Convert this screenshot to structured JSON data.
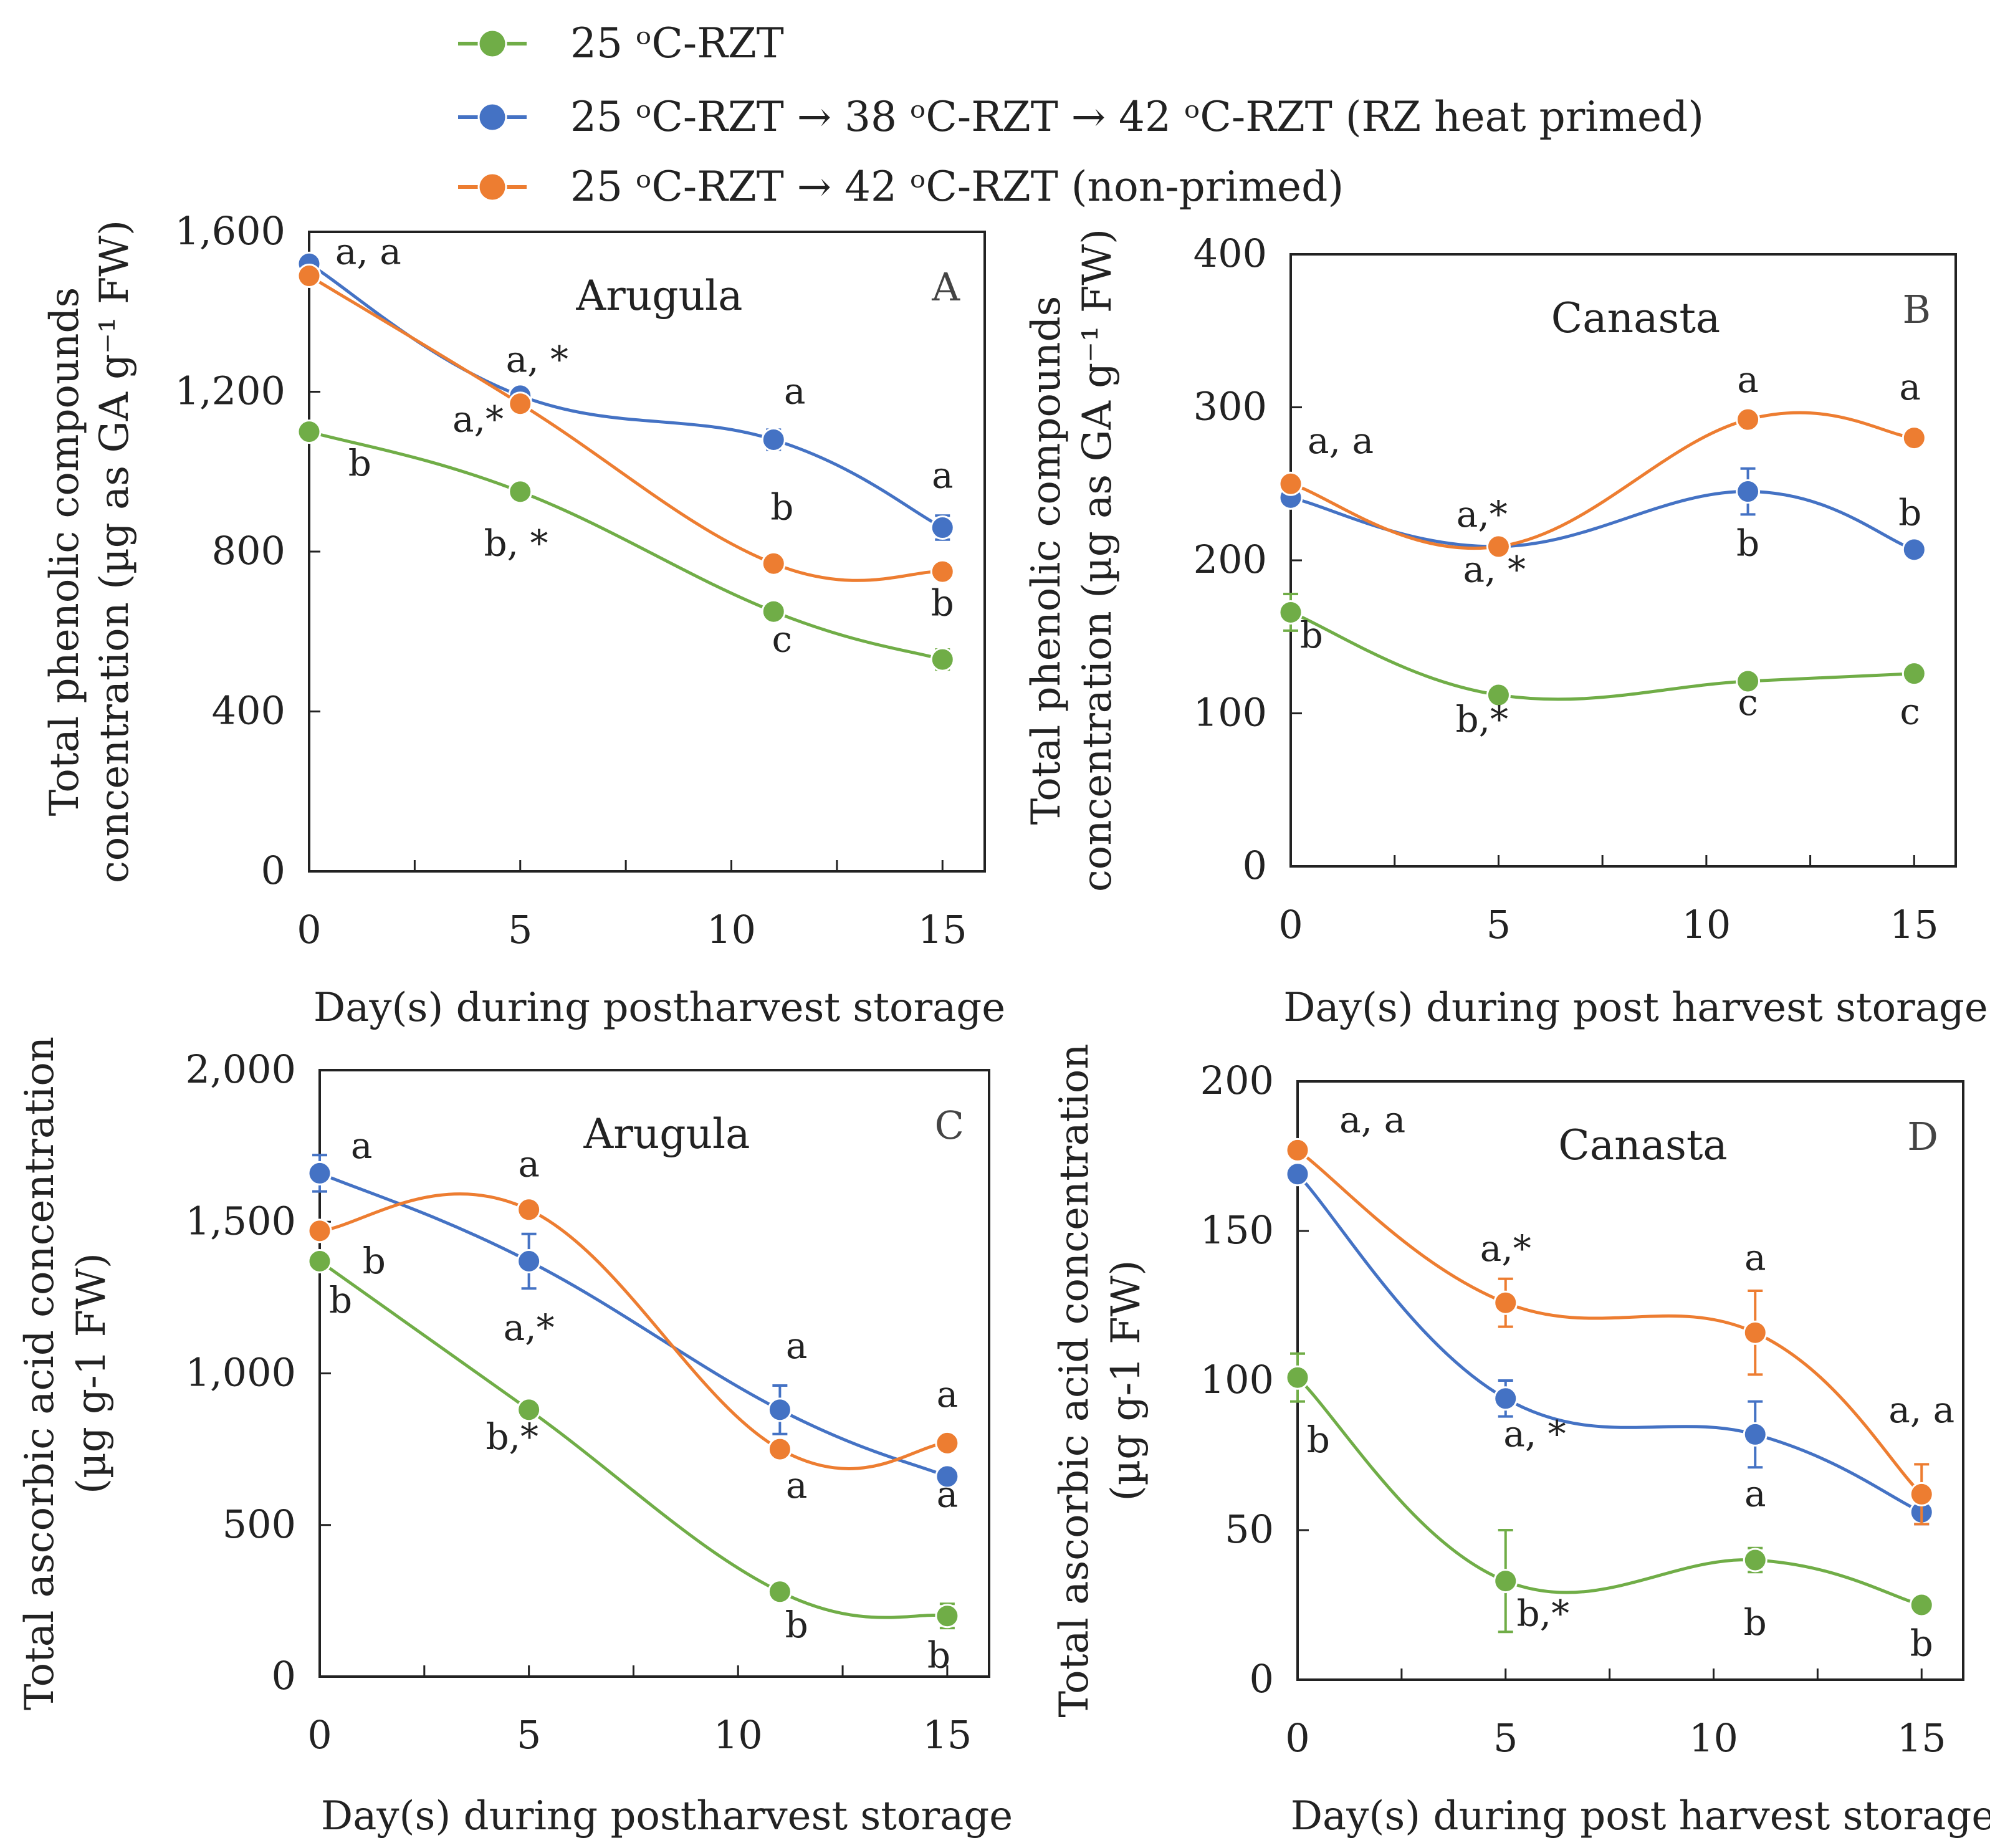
{
  "legend": {
    "entries": [
      {
        "label": "25 ᵒC-RZT",
        "color": "#70ad47"
      },
      {
        "label": "25 ᵒC-RZT → 38 ᵒC-RZT → 42 ᵒC-RZT (RZ heat primed)",
        "color": "#4472c4"
      },
      {
        "label": "25 ᵒC-RZT → 42 ᵒC-RZT (non-primed)",
        "color": "#ed7d31"
      }
    ]
  },
  "chart_data": [
    {
      "id": "A",
      "type": "line",
      "letter": "A",
      "title": "Arugula",
      "xlabel": "Day(s) during postharvest storage",
      "ylabel": [
        "Total phenolic  compounds",
        "concentration (µg as GA g⁻¹ FW)"
      ],
      "x": [
        0,
        5,
        11,
        15
      ],
      "xticks": [
        0,
        5,
        10,
        15
      ],
      "xlim": [
        0,
        16
      ],
      "ylim": [
        0,
        1600
      ],
      "yticks": [
        0,
        400,
        800,
        1200,
        1600
      ],
      "ytick_labels": [
        "0",
        "400",
        "800",
        "1,200",
        "1,600"
      ],
      "series": [
        {
          "name": "25 ᵒC-RZT",
          "color": "#70ad47",
          "values": [
            1100,
            950,
            650,
            530
          ],
          "errors": [
            0,
            0,
            0,
            25
          ]
        },
        {
          "name": "RZ heat primed",
          "color": "#4472c4",
          "values": [
            1520,
            1190,
            1080,
            860
          ],
          "errors": [
            0,
            0,
            25,
            30
          ]
        },
        {
          "name": "non-primed",
          "color": "#ed7d31",
          "values": [
            1490,
            1170,
            770,
            750
          ],
          "errors": [
            0,
            20,
            0,
            0
          ]
        }
      ],
      "annotations": [
        {
          "text": "a, a",
          "x": 1.4,
          "y": 1520
        },
        {
          "text": "b",
          "x": 1.2,
          "y": 990
        },
        {
          "text": "a, *",
          "x": 5.4,
          "y": 1250
        },
        {
          "text": "a,*",
          "x": 4.0,
          "y": 1100
        },
        {
          "text": "b, *",
          "x": 4.9,
          "y": 790
        },
        {
          "text": "a",
          "x": 11.5,
          "y": 1170
        },
        {
          "text": "b",
          "x": 11.2,
          "y": 880
        },
        {
          "text": "c",
          "x": 11.2,
          "y": 550
        },
        {
          "text": "a",
          "x": 15.0,
          "y": 960
        },
        {
          "text": "b",
          "x": 15.0,
          "y": 640
        }
      ]
    },
    {
      "id": "B",
      "type": "line",
      "letter": "B",
      "title": "Canasta",
      "xlabel": "Day(s) during post harvest storage",
      "ylabel": [
        "Total phenolic  compounds",
        "concentration (µg as GA g⁻¹ FW)"
      ],
      "x": [
        0,
        5,
        11,
        15
      ],
      "xticks": [
        0,
        5,
        10,
        15
      ],
      "xlim": [
        0,
        16
      ],
      "ylim": [
        0,
        400
      ],
      "yticks": [
        0,
        100,
        200,
        300,
        400
      ],
      "ytick_labels": [
        "0",
        "100",
        "200",
        "300",
        "400"
      ],
      "series": [
        {
          "name": "25 ᵒC-RZT",
          "color": "#70ad47",
          "values": [
            166,
            112,
            121,
            126
          ],
          "errors": [
            12,
            0,
            0,
            5
          ]
        },
        {
          "name": "RZ heat primed",
          "color": "#4472c4",
          "values": [
            241,
            209,
            245,
            207
          ],
          "errors": [
            0,
            0,
            15,
            0
          ]
        },
        {
          "name": "non-primed",
          "color": "#ed7d31",
          "values": [
            250,
            209,
            292,
            280
          ],
          "errors": [
            0,
            0,
            0,
            0
          ]
        }
      ],
      "annotations": [
        {
          "text": "a, a",
          "x": 1.2,
          "y": 270
        },
        {
          "text": "b",
          "x": 0.5,
          "y": 143
        },
        {
          "text": "a,*",
          "x": 4.6,
          "y": 222
        },
        {
          "text": "a, *",
          "x": 4.9,
          "y": 186
        },
        {
          "text": "b,*",
          "x": 4.6,
          "y": 88
        },
        {
          "text": "a",
          "x": 11.0,
          "y": 310
        },
        {
          "text": "b",
          "x": 11.0,
          "y": 203
        },
        {
          "text": "c",
          "x": 11.0,
          "y": 99
        },
        {
          "text": "a",
          "x": 14.9,
          "y": 305
        },
        {
          "text": "b",
          "x": 14.9,
          "y": 223
        },
        {
          "text": "c",
          "x": 14.9,
          "y": 93
        }
      ]
    },
    {
      "id": "C",
      "type": "line",
      "letter": "C",
      "title": "Arugula",
      "xlabel": "Day(s) during postharvest storage",
      "ylabel": [
        "Total ascorbic acid concentration",
        "(µg g-1 FW)"
      ],
      "x": [
        0,
        5,
        11,
        15
      ],
      "xticks": [
        0,
        5,
        10,
        15
      ],
      "xlim": [
        0,
        16
      ],
      "ylim": [
        0,
        2000
      ],
      "yticks": [
        0,
        500,
        1000,
        1500,
        2000
      ],
      "ytick_labels": [
        "0",
        "500",
        "1,000",
        "1,500",
        "2,000"
      ],
      "series": [
        {
          "name": "25 ᵒC-RZT",
          "color": "#70ad47",
          "values": [
            1370,
            880,
            280,
            200
          ],
          "errors": [
            0,
            0,
            0,
            40
          ]
        },
        {
          "name": "RZ heat primed",
          "color": "#4472c4",
          "values": [
            1660,
            1370,
            880,
            660
          ],
          "errors": [
            60,
            90,
            80,
            0
          ]
        },
        {
          "name": "non-primed",
          "color": "#ed7d31",
          "values": [
            1470,
            1540,
            750,
            770
          ],
          "errors": [
            0,
            0,
            0,
            0
          ]
        }
      ],
      "annotations": [
        {
          "text": "a",
          "x": 1.0,
          "y": 1710
        },
        {
          "text": "b",
          "x": 1.3,
          "y": 1330
        },
        {
          "text": "b",
          "x": 0.5,
          "y": 1200
        },
        {
          "text": "a",
          "x": 5.0,
          "y": 1650
        },
        {
          "text": "a,*",
          "x": 5.0,
          "y": 1110
        },
        {
          "text": "b,*",
          "x": 4.6,
          "y": 750
        },
        {
          "text": "a",
          "x": 11.4,
          "y": 1050
        },
        {
          "text": "a",
          "x": 11.4,
          "y": 590
        },
        {
          "text": "b",
          "x": 11.4,
          "y": 130
        },
        {
          "text": "a",
          "x": 15.0,
          "y": 890
        },
        {
          "text": "a",
          "x": 15.0,
          "y": 560
        },
        {
          "text": "b",
          "x": 14.8,
          "y": 30
        }
      ]
    },
    {
      "id": "D",
      "type": "line",
      "letter": "D",
      "title": "Canasta",
      "xlabel": "Day(s) during post harvest storage",
      "ylabel": [
        "Total ascorbic acid concentration",
        "(µg g-1 FW)"
      ],
      "x": [
        0,
        5,
        11,
        15
      ],
      "xticks": [
        0,
        5,
        10,
        15
      ],
      "xlim": [
        0,
        16
      ],
      "ylim": [
        0,
        200
      ],
      "yticks": [
        0,
        50,
        100,
        150,
        200
      ],
      "ytick_labels": [
        "0",
        "50",
        "100",
        "150",
        "200"
      ],
      "series": [
        {
          "name": "25 ᵒC-RZT",
          "color": "#70ad47",
          "values": [
            101,
            33,
            40,
            25
          ],
          "errors": [
            8,
            17,
            4,
            0
          ]
        },
        {
          "name": "RZ heat primed",
          "color": "#4472c4",
          "values": [
            169,
            94,
            82,
            56
          ],
          "errors": [
            0,
            6,
            11,
            4
          ]
        },
        {
          "name": "non-primed",
          "color": "#ed7d31",
          "values": [
            177,
            126,
            116,
            62
          ],
          "errors": [
            0,
            8,
            14,
            10
          ]
        }
      ],
      "annotations": [
        {
          "text": "a, a",
          "x": 1.8,
          "y": 183
        },
        {
          "text": "b",
          "x": 0.5,
          "y": 76
        },
        {
          "text": "a,*",
          "x": 5.0,
          "y": 140
        },
        {
          "text": "a, *",
          "x": 5.7,
          "y": 78
        },
        {
          "text": "b,*",
          "x": 5.9,
          "y": 18
        },
        {
          "text": "a",
          "x": 11.0,
          "y": 137
        },
        {
          "text": "a",
          "x": 11.0,
          "y": 58
        },
        {
          "text": "b",
          "x": 11.0,
          "y": 15
        },
        {
          "text": "a, a",
          "x": 15.0,
          "y": 86
        },
        {
          "text": "b",
          "x": 15.0,
          "y": 8
        }
      ]
    }
  ]
}
